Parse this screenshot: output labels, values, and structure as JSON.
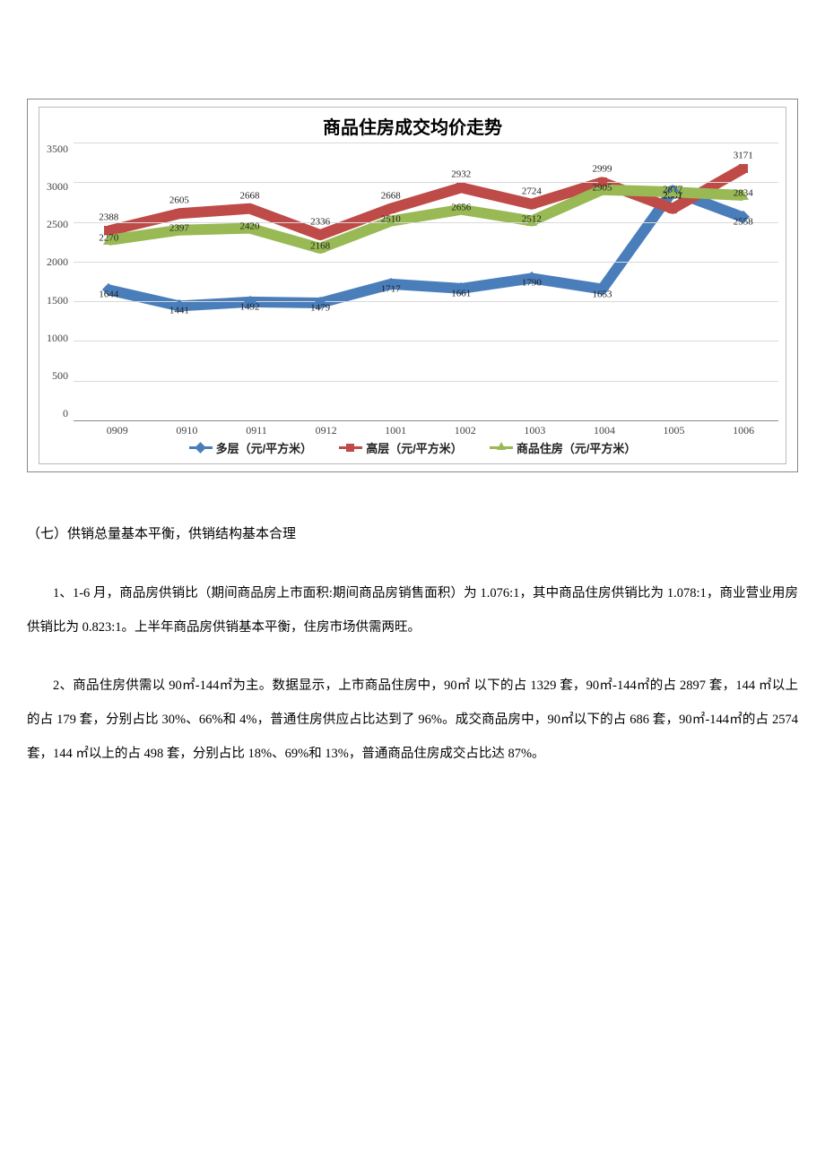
{
  "chart": {
    "title": "商品住房成交均价走势",
    "title_fontsize": 20,
    "background_color": "#ffffff",
    "grid_color": "#d9d9d9",
    "ylim": [
      0,
      3500
    ],
    "ytick_step": 500,
    "yticks": [
      "3500",
      "3000",
      "2500",
      "2000",
      "1500",
      "1000",
      "500",
      "0"
    ],
    "categories": [
      "0909",
      "0910",
      "0911",
      "0912",
      "1001",
      "1002",
      "1003",
      "1004",
      "1005",
      "1006"
    ],
    "series": [
      {
        "name": "多层（元/平方米）",
        "color": "#4a7ebb",
        "marker": "diamond",
        "values": [
          1644,
          1441,
          1492,
          1479,
          1717,
          1661,
          1790,
          1653,
          2891,
          2558
        ]
      },
      {
        "name": "高层（元/平方米）",
        "color": "#be4b48",
        "marker": "square",
        "values": [
          2388,
          2605,
          2668,
          2336,
          2668,
          2932,
          2724,
          2999,
          2667,
          3171
        ]
      },
      {
        "name": "商品住房（元/平方米）",
        "color": "#98b954",
        "marker": "triangle",
        "values": [
          2270,
          2397,
          2420,
          2168,
          2510,
          2656,
          2512,
          2905,
          2877,
          2834
        ]
      }
    ],
    "line_width": 3,
    "marker_size": 10,
    "label_fontsize": 11
  },
  "text": {
    "heading": "（七）供销总量基本平衡，供销结构基本合理",
    "para1": "1、1-6 月，商品房供销比（期间商品房上市面积:期间商品房销售面积）为 1.076:1，其中商品住房供销比为 1.078:1，商业营业用房供销比为 0.823:1。上半年商品房供销基本平衡，住房市场供需两旺。",
    "para2": "2、商品住房供需以 90㎡-144㎡为主。数据显示，上市商品住房中，90㎡ 以下的占 1329 套，90㎡-144㎡的占 2897 套，144 ㎡以上的占 179 套，分别占比 30%、66%和 4%，普通住房供应占比达到了 96%。成交商品房中，90㎡以下的占 686 套，90㎡-144㎡的占 2574 套，144 ㎡以上的占 498 套，分别占比 18%、69%和 13%，普通商品住房成交占比达 87%。"
  }
}
